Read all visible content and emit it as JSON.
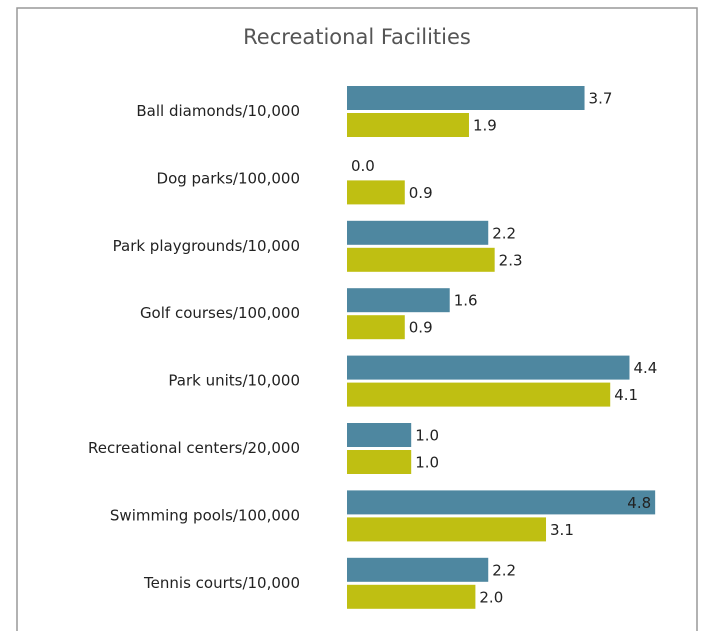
{
  "chart_data": {
    "type": "bar",
    "orientation": "horizontal",
    "title": "Recreational Facilities",
    "categories": [
      "Ball diamonds/10,000",
      "Dog parks/100,000",
      "Park playgrounds/10,000",
      "Golf courses/100,000",
      "Park units/10,000",
      "Recreational centers/20,000",
      "Swimming pools/100,000",
      "Tennis courts/10,000"
    ],
    "series": [
      {
        "color": "#4e87a0",
        "values": [
          3.7,
          0,
          2.2,
          1.6,
          4.4,
          1,
          4.8,
          2.2
        ],
        "value_labels": [
          "3.7",
          "0.0",
          "2.2",
          "1.6",
          "4.4",
          "1.0",
          "4.8",
          "2.2"
        ]
      },
      {
        "color": "#bfbf12",
        "values": [
          1.9,
          0.9,
          2.3,
          0.9,
          4.1,
          1,
          3.1,
          2
        ],
        "value_labels": [
          "1.9",
          "0.9",
          "2.3",
          "0.9",
          "4.1",
          "1.0",
          "3.1",
          "2.0"
        ]
      }
    ]
  }
}
